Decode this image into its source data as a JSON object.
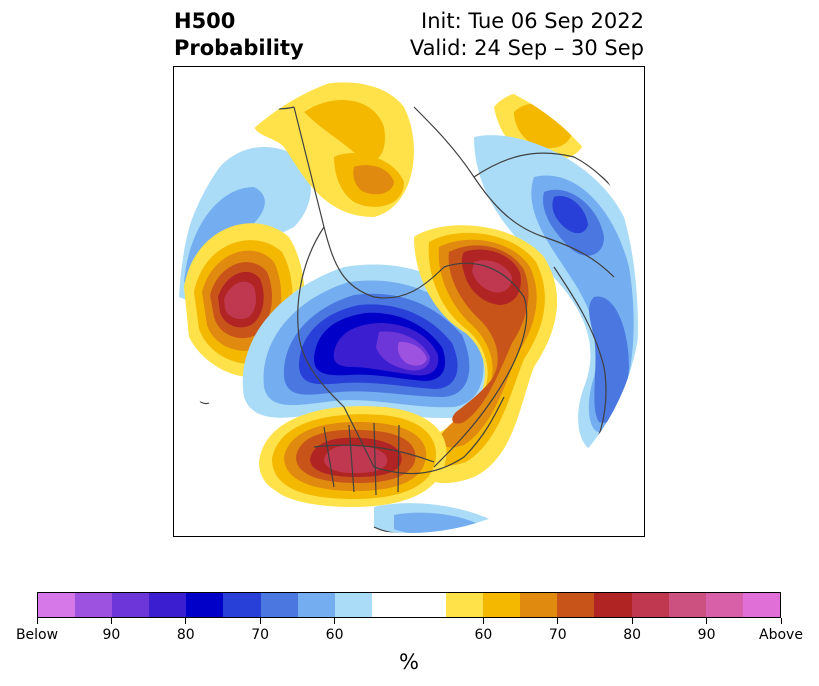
{
  "title": {
    "left_line1": "H500",
    "left_line2": "Probability",
    "right_line1": "Init: Tue 06 Sep 2022",
    "right_line2": "Valid: 24 Sep – 30 Sep"
  },
  "map": {
    "description_icon": "globe-map",
    "anomalies": [
      {
        "name": "alaska-above",
        "category": "Above",
        "level": 60
      },
      {
        "name": "nw-pacific-above",
        "category": "Above",
        "level": 80
      },
      {
        "name": "canada-below",
        "category": "Below",
        "level": 90
      },
      {
        "name": "greenland-above",
        "category": "Above",
        "level": 80
      },
      {
        "name": "us-west-above",
        "category": "Above",
        "level": 80
      },
      {
        "name": "north-atlantic-above",
        "category": "Above",
        "level": 70
      },
      {
        "name": "europe-below",
        "category": "Below",
        "level": 70
      },
      {
        "name": "siberia-above",
        "category": "Above",
        "level": 60
      }
    ]
  },
  "colorbar": {
    "colors": [
      "#d678e8",
      "#9e52e0",
      "#6c36d8",
      "#3b1ed0",
      "#0000c8",
      "#2840d8",
      "#4a78e0",
      "#74aef0",
      "#aadcf8",
      "#ffffff",
      "#ffffff",
      "#ffe24a",
      "#f4b800",
      "#e08a10",
      "#c8541a",
      "#b02424",
      "#c03850",
      "#cc5080",
      "#d860a8",
      "#e070d8"
    ],
    "tick_labels": [
      "Below",
      "90",
      "80",
      "70",
      "60",
      "60",
      "70",
      "80",
      "90",
      "Above"
    ],
    "unit_label": "%"
  }
}
